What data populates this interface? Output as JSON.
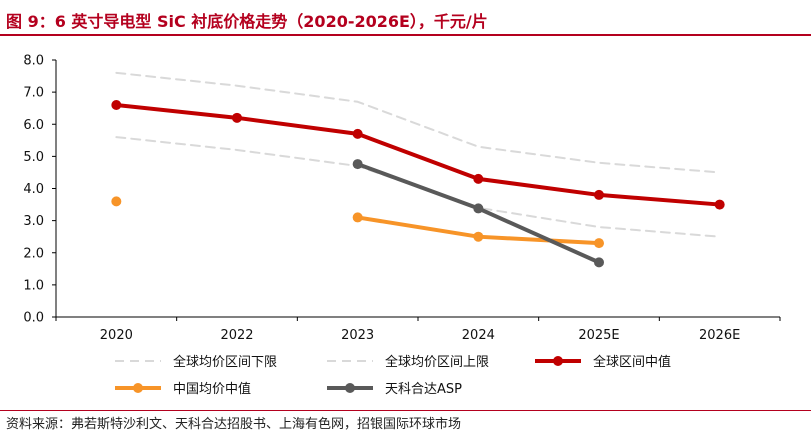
{
  "title": "图 9：6 英寸导电型 SiC 衬底价格走势（2020-2026E），千元/片",
  "source": "资料来源：弗若斯特沙利文、天科合达招股书、上海有色网，招银国际环球市场",
  "chart_data": {
    "type": "line",
    "categories": [
      "2020",
      "2022",
      "2023",
      "2024",
      "2025E",
      "2026E"
    ],
    "ylim": [
      0,
      8
    ],
    "yticks": [
      "0.0",
      "1.0",
      "2.0",
      "3.0",
      "4.0",
      "5.0",
      "6.0",
      "7.0",
      "8.0"
    ],
    "grid": false,
    "legend_position": "bottom",
    "series": [
      {
        "name": "全球均价区间下限",
        "color": "#d9d9d9",
        "dash": true,
        "marker": false,
        "values": [
          5.6,
          5.2,
          4.7,
          3.4,
          2.8,
          2.5
        ]
      },
      {
        "name": "全球均价区间上限",
        "color": "#d9d9d9",
        "dash": true,
        "marker": false,
        "values": [
          7.6,
          7.2,
          6.7,
          5.3,
          4.8,
          4.5
        ]
      },
      {
        "name": "全球区间中值",
        "color": "#c00000",
        "dash": false,
        "marker": true,
        "values": [
          6.6,
          6.2,
          5.7,
          4.3,
          3.8,
          3.5
        ]
      },
      {
        "name": "中国均价中值",
        "color": "#f79428",
        "dash": false,
        "marker": true,
        "values": [
          3.6,
          null,
          3.1,
          2.5,
          2.3,
          null
        ]
      },
      {
        "name": "天科合达ASP",
        "color": "#595959",
        "dash": false,
        "marker": true,
        "values": [
          null,
          null,
          4.76,
          3.38,
          1.7,
          null
        ]
      }
    ]
  }
}
